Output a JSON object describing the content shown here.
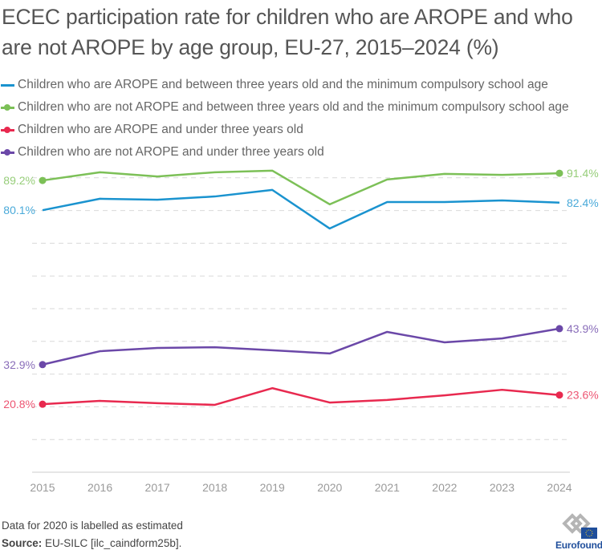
{
  "title": "ECEC participation rate for children who are AROPE and who are not AROPE by age group, EU-27, 2015–2024 (%)",
  "legend": [
    {
      "label": "Children who are AROPE and between three years old and the minimum compulsory school age",
      "color": "#1a93cf",
      "marker": "line"
    },
    {
      "label": "Children who are not AROPE and between three years old and the minimum compulsory school age",
      "color": "#7cc057",
      "marker": "dot"
    },
    {
      "label": "Children who are AROPE and under three years old",
      "color": "#e8294f",
      "marker": "dot"
    },
    {
      "label": "Children who are not AROPE and under three years old",
      "color": "#6b48a8",
      "marker": "dot"
    }
  ],
  "chart_data": {
    "type": "line",
    "title": "ECEC participation rate for children who are AROPE and who are not AROPE by age group, EU-27, 2015–2024 (%)",
    "xlabel": "",
    "ylabel": "",
    "x": [
      "2015",
      "2016",
      "2017",
      "2018",
      "2019",
      "2020",
      "2021",
      "2022",
      "2023",
      "2024"
    ],
    "ylim": [
      0,
      90
    ],
    "yticks": [
      10,
      20,
      30,
      40,
      50,
      60,
      70,
      80,
      90
    ],
    "grid": true,
    "legend_position": "top-left",
    "series": [
      {
        "name": "Children who are AROPE and between three years old and the minimum compulsory school age",
        "color": "#1a93cf",
        "values": [
          80.1,
          83.6,
          83.3,
          84.3,
          86.3,
          74.5,
          82.6,
          82.6,
          83.1,
          82.4
        ],
        "start_label": "80.1%",
        "end_label": "82.4%",
        "end_markers": false
      },
      {
        "name": "Children who are not AROPE and between three years old and the minimum compulsory school age",
        "color": "#7cc057",
        "values": [
          89.2,
          91.7,
          90.4,
          91.7,
          92.2,
          81.9,
          89.5,
          91.2,
          90.9,
          91.4
        ],
        "start_label": "89.2%",
        "end_label": "91.4%",
        "end_markers": true
      },
      {
        "name": "Children who are AROPE and under three years old",
        "color": "#e8294f",
        "values": [
          20.8,
          21.8,
          21.1,
          20.6,
          25.7,
          21.3,
          22.1,
          23.5,
          25.2,
          23.6
        ],
        "start_label": "20.8%",
        "end_label": "23.6%",
        "end_markers": true
      },
      {
        "name": "Children who are not AROPE and under three years old",
        "color": "#6b48a8",
        "values": [
          32.9,
          37.0,
          38.0,
          38.2,
          37.3,
          36.3,
          42.9,
          39.7,
          40.9,
          43.9
        ],
        "start_label": "32.9%",
        "end_label": "43.9%",
        "end_markers": true
      }
    ],
    "annotations": [
      "Data for 2020 is labelled as estimated"
    ]
  },
  "footer": {
    "note": "Data for 2020 is labelled as estimated",
    "source_label": "Source:",
    "source_text": " EU-SILC [ilc_caindform25b]."
  },
  "logo": {
    "text": "Eurofound"
  }
}
